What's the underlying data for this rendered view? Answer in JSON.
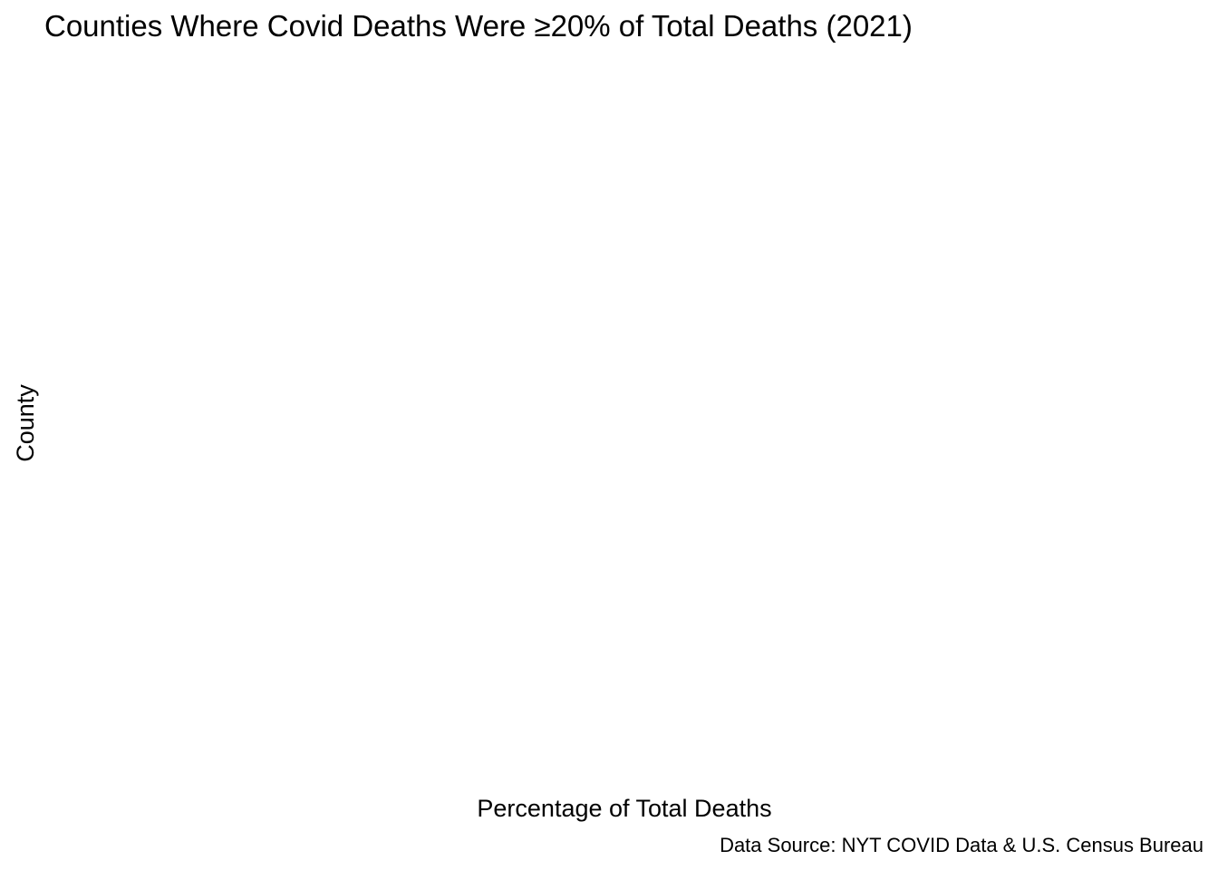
{
  "chart_data": {
    "type": "bar",
    "title": "Counties Where Covid Deaths Were ≥20% of Total Deaths (2021)",
    "xlabel": "Percentage of Total Deaths",
    "ylabel": "County",
    "caption": "Data Source: NYT COVID Data & U.S. Census Bureau",
    "categories": [],
    "values": [],
    "grid": false,
    "legend": "none"
  }
}
